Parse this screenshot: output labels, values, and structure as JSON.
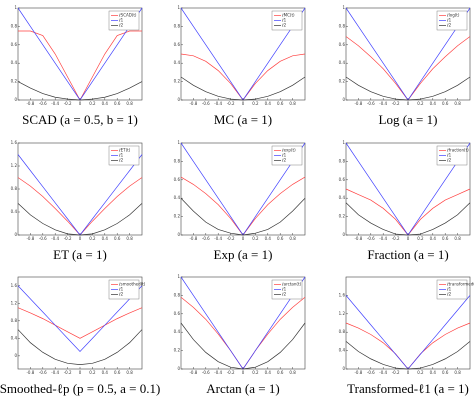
{
  "chart_data": [
    {
      "type": "line",
      "caption": "SCAD (a = 0.5, b = 1)",
      "x": [
        -1,
        -0.8,
        -0.6,
        -0.4,
        -0.2,
        0,
        0.2,
        0.4,
        0.6,
        0.8,
        1
      ],
      "xlim": [
        -1,
        1
      ],
      "xticks": [
        -0.8,
        -0.6,
        -0.4,
        -0.2,
        0,
        0.2,
        0.4,
        0.6,
        0.8
      ],
      "ylim": [
        0,
        1
      ],
      "yticks": [
        0,
        0.2,
        0.4,
        0.6,
        0.8,
        1
      ],
      "legend": "upper right",
      "series": [
        {
          "name": "ℓSCAD(t)",
          "color": "#ff4040",
          "values": [
            0.75,
            0.75,
            0.7,
            0.5,
            0.25,
            0,
            0.25,
            0.5,
            0.7,
            0.75,
            0.75
          ]
        },
        {
          "name": "ℓ1",
          "color": "#4040ff",
          "values": [
            1,
            0.8,
            0.6,
            0.4,
            0.2,
            0,
            0.2,
            0.4,
            0.6,
            0.8,
            1
          ]
        },
        {
          "name": "ℓ2",
          "color": "#333333",
          "values": [
            0.2,
            0.13,
            0.07,
            0.03,
            0.01,
            0,
            0.01,
            0.03,
            0.07,
            0.13,
            0.2
          ]
        }
      ]
    },
    {
      "type": "line",
      "caption": "MC (a = 1)",
      "x": [
        -1,
        -0.8,
        -0.6,
        -0.4,
        -0.2,
        0,
        0.2,
        0.4,
        0.6,
        0.8,
        1
      ],
      "xlim": [
        -1,
        1
      ],
      "xticks": [
        -0.8,
        -0.6,
        -0.4,
        -0.2,
        0,
        0.2,
        0.4,
        0.6,
        0.8
      ],
      "ylim": [
        0,
        1
      ],
      "yticks": [
        0,
        0.2,
        0.4,
        0.6,
        0.8,
        1
      ],
      "legend": "upper right",
      "series": [
        {
          "name": "ℓMC(t)",
          "color": "#ff4040",
          "values": [
            0.5,
            0.48,
            0.42,
            0.32,
            0.18,
            0,
            0.18,
            0.32,
            0.42,
            0.48,
            0.5
          ]
        },
        {
          "name": "ℓ1",
          "color": "#4040ff",
          "values": [
            1,
            0.8,
            0.6,
            0.4,
            0.2,
            0,
            0.2,
            0.4,
            0.6,
            0.8,
            1
          ]
        },
        {
          "name": "ℓ2",
          "color": "#333333",
          "values": [
            0.25,
            0.16,
            0.09,
            0.04,
            0.01,
            0,
            0.01,
            0.04,
            0.09,
            0.16,
            0.25
          ]
        }
      ]
    },
    {
      "type": "line",
      "caption": "Log (a = 1)",
      "x": [
        -1,
        -0.8,
        -0.6,
        -0.4,
        -0.2,
        0,
        0.2,
        0.4,
        0.6,
        0.8,
        1
      ],
      "xlim": [
        -1,
        1
      ],
      "xticks": [
        -0.8,
        -0.6,
        -0.4,
        -0.2,
        0,
        0.2,
        0.4,
        0.6,
        0.8
      ],
      "ylim": [
        0,
        1
      ],
      "yticks": [
        0,
        0.2,
        0.4,
        0.6,
        0.8,
        1
      ],
      "legend": "upper right",
      "series": [
        {
          "name": "ℓlog(t)",
          "color": "#ff4040",
          "values": [
            0.69,
            0.59,
            0.47,
            0.34,
            0.18,
            0,
            0.18,
            0.34,
            0.47,
            0.59,
            0.69
          ]
        },
        {
          "name": "ℓ1",
          "color": "#4040ff",
          "values": [
            1,
            0.8,
            0.6,
            0.4,
            0.2,
            0,
            0.2,
            0.4,
            0.6,
            0.8,
            1
          ]
        },
        {
          "name": "ℓ2",
          "color": "#333333",
          "values": [
            0.25,
            0.16,
            0.09,
            0.04,
            0.01,
            0,
            0.01,
            0.04,
            0.09,
            0.16,
            0.25
          ]
        }
      ]
    },
    {
      "type": "line",
      "caption": "ET (a = 1)",
      "x": [
        -1,
        -0.8,
        -0.6,
        -0.4,
        -0.2,
        0,
        0.2,
        0.4,
        0.6,
        0.8,
        1
      ],
      "xlim": [
        -1,
        1
      ],
      "xticks": [
        -0.8,
        -0.6,
        -0.4,
        -0.2,
        0,
        0.2,
        0.4,
        0.6,
        0.8
      ],
      "ylim": [
        0,
        1.6
      ],
      "yticks": [
        0,
        0.4,
        0.8,
        1.2,
        1.6
      ],
      "legend": "upper right",
      "series": [
        {
          "name": "ℓET(t)",
          "color": "#ff4040",
          "values": [
            1,
            0.85,
            0.67,
            0.46,
            0.24,
            0,
            0.24,
            0.46,
            0.67,
            0.85,
            1
          ]
        },
        {
          "name": "ℓ1",
          "color": "#4040ff",
          "values": [
            1.4,
            1.12,
            0.84,
            0.56,
            0.28,
            0,
            0.28,
            0.56,
            0.84,
            1.12,
            1.4
          ]
        },
        {
          "name": "ℓ2",
          "color": "#333333",
          "values": [
            0.55,
            0.35,
            0.2,
            0.09,
            0.02,
            0,
            0.02,
            0.09,
            0.2,
            0.35,
            0.55
          ]
        }
      ]
    },
    {
      "type": "line",
      "caption": "Exp (a = 1)",
      "x": [
        -1,
        -0.8,
        -0.6,
        -0.4,
        -0.2,
        0,
        0.2,
        0.4,
        0.6,
        0.8,
        1
      ],
      "xlim": [
        -1,
        1
      ],
      "xticks": [
        -0.8,
        -0.6,
        -0.4,
        -0.2,
        0,
        0.2,
        0.4,
        0.6,
        0.8
      ],
      "ylim": [
        0,
        1
      ],
      "yticks": [
        0,
        0.2,
        0.4,
        0.6,
        0.8,
        1
      ],
      "legend": "upper right",
      "series": [
        {
          "name": "ℓexp(t)",
          "color": "#ff4040",
          "values": [
            0.63,
            0.55,
            0.45,
            0.33,
            0.18,
            0,
            0.18,
            0.33,
            0.45,
            0.55,
            0.63
          ]
        },
        {
          "name": "ℓ1",
          "color": "#4040ff",
          "values": [
            1,
            0.8,
            0.6,
            0.4,
            0.2,
            0,
            0.2,
            0.4,
            0.6,
            0.8,
            1
          ]
        },
        {
          "name": "ℓ2",
          "color": "#333333",
          "values": [
            0.4,
            0.26,
            0.14,
            0.06,
            0.02,
            0,
            0.02,
            0.06,
            0.14,
            0.26,
            0.4
          ]
        }
      ]
    },
    {
      "type": "line",
      "caption": "Fraction (a = 1)",
      "x": [
        -1,
        -0.8,
        -0.6,
        -0.4,
        -0.2,
        0,
        0.2,
        0.4,
        0.6,
        0.8,
        1
      ],
      "xlim": [
        -1,
        1
      ],
      "xticks": [
        -0.8,
        -0.6,
        -0.4,
        -0.2,
        0,
        0.2,
        0.4,
        0.6,
        0.8
      ],
      "ylim": [
        0,
        1
      ],
      "yticks": [
        0,
        0.2,
        0.4,
        0.6,
        0.8,
        1
      ],
      "legend": "upper right",
      "series": [
        {
          "name": "ℓfraction(t)",
          "color": "#ff4040",
          "values": [
            0.5,
            0.44,
            0.38,
            0.29,
            0.17,
            0,
            0.17,
            0.29,
            0.38,
            0.44,
            0.5
          ]
        },
        {
          "name": "ℓ1",
          "color": "#4040ff",
          "values": [
            1,
            0.8,
            0.6,
            0.4,
            0.2,
            0,
            0.2,
            0.4,
            0.6,
            0.8,
            1
          ]
        },
        {
          "name": "ℓ2",
          "color": "#333333",
          "values": [
            0.35,
            0.22,
            0.13,
            0.06,
            0.01,
            0,
            0.01,
            0.06,
            0.13,
            0.22,
            0.35
          ]
        }
      ]
    },
    {
      "type": "line",
      "caption": "Smoothed-ℓp (p = 0.5, a = 0.1)",
      "x": [
        -1,
        -0.8,
        -0.6,
        -0.4,
        -0.2,
        0,
        0.2,
        0.4,
        0.6,
        0.8,
        1
      ],
      "xlim": [
        -1,
        1
      ],
      "xticks": [
        -0.8,
        -0.6,
        -0.4,
        -0.2,
        0,
        0.2,
        0.4,
        0.6,
        0.8
      ],
      "ylim": [
        -0.3,
        1.8
      ],
      "yticks": [
        0,
        0.4,
        0.8,
        1.2,
        1.6
      ],
      "legend": "upper right",
      "series": [
        {
          "name": "ℓsmoothed(t)",
          "color": "#ff4040",
          "values": [
            1.1,
            0.98,
            0.85,
            0.7,
            0.55,
            0.4,
            0.55,
            0.7,
            0.85,
            0.98,
            1.1
          ]
        },
        {
          "name": "ℓ1",
          "color": "#4040ff",
          "values": [
            1.6,
            1.3,
            1,
            0.7,
            0.4,
            0.1,
            0.4,
            0.7,
            1,
            1.3,
            1.6
          ]
        },
        {
          "name": "ℓ2",
          "color": "#333333",
          "values": [
            0.6,
            0.3,
            0.08,
            -0.08,
            -0.17,
            -0.2,
            -0.17,
            -0.08,
            0.08,
            0.3,
            0.6
          ]
        }
      ]
    },
    {
      "type": "line",
      "caption": "Arctan (a = 1)",
      "x": [
        -1,
        -0.8,
        -0.6,
        -0.4,
        -0.2,
        0,
        0.2,
        0.4,
        0.6,
        0.8,
        1
      ],
      "xlim": [
        -1,
        1
      ],
      "xticks": [
        -0.8,
        -0.6,
        -0.4,
        -0.2,
        0,
        0.2,
        0.4,
        0.6,
        0.8
      ],
      "ylim": [
        0,
        1
      ],
      "yticks": [
        0,
        0.2,
        0.4,
        0.6,
        0.8,
        1
      ],
      "legend": "upper right",
      "series": [
        {
          "name": "ℓarctan(t)",
          "color": "#ff4040",
          "values": [
            0.78,
            0.67,
            0.54,
            0.38,
            0.2,
            0,
            0.2,
            0.38,
            0.54,
            0.67,
            0.78
          ]
        },
        {
          "name": "ℓ1",
          "color": "#4040ff",
          "values": [
            1,
            0.8,
            0.6,
            0.4,
            0.2,
            0,
            0.2,
            0.4,
            0.6,
            0.8,
            1
          ]
        },
        {
          "name": "ℓ2",
          "color": "#333333",
          "values": [
            0.5,
            0.32,
            0.18,
            0.08,
            0.02,
            0,
            0.02,
            0.08,
            0.18,
            0.32,
            0.5
          ]
        }
      ]
    },
    {
      "type": "line",
      "caption": "Transformed-ℓ1 (a = 1)",
      "x": [
        -1,
        -0.8,
        -0.6,
        -0.4,
        -0.2,
        0,
        0.2,
        0.4,
        0.6,
        0.8,
        1
      ],
      "xlim": [
        -1,
        1
      ],
      "xticks": [
        -0.8,
        -0.6,
        -0.4,
        -0.2,
        0,
        0.2,
        0.4,
        0.6,
        0.8
      ],
      "ylim": [
        0,
        2
      ],
      "yticks": [
        0,
        0.4,
        0.8,
        1.2,
        1.6
      ],
      "legend": "upper right",
      "series": [
        {
          "name": "ℓtransformed(t)",
          "color": "#ff4040",
          "values": [
            1,
            0.89,
            0.75,
            0.57,
            0.33,
            0,
            0.33,
            0.57,
            0.75,
            0.89,
            1
          ]
        },
        {
          "name": "ℓ1",
          "color": "#4040ff",
          "values": [
            1.6,
            1.28,
            0.96,
            0.64,
            0.32,
            0,
            0.32,
            0.64,
            0.96,
            1.28,
            1.6
          ]
        },
        {
          "name": "ℓ2",
          "color": "#333333",
          "values": [
            0.6,
            0.38,
            0.22,
            0.1,
            0.02,
            0,
            0.02,
            0.1,
            0.22,
            0.38,
            0.6
          ]
        }
      ]
    }
  ]
}
